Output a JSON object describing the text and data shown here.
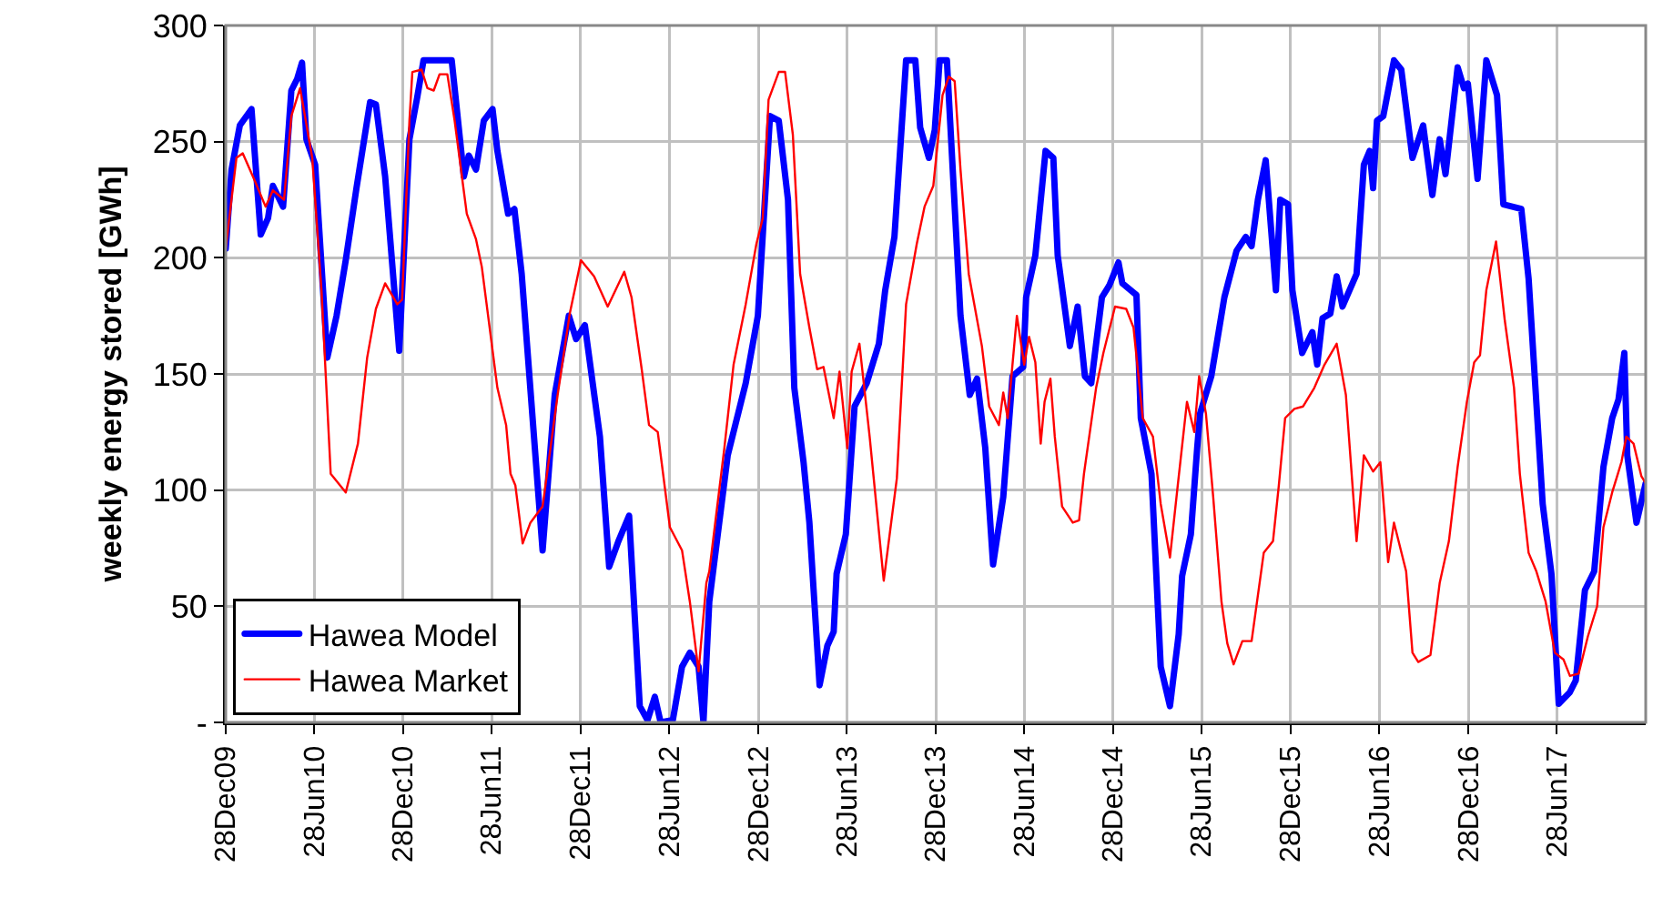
{
  "chart_data": {
    "type": "line",
    "ylabel": "weekly energy stored [GWh]",
    "xlim": [
      "2009-12-28",
      "2017-12-28"
    ],
    "xticks": [
      {
        "value": "2009-12-28",
        "label": "28Dec09"
      },
      {
        "value": "2010-06-28",
        "label": "28Jun10"
      },
      {
        "value": "2010-12-28",
        "label": "28Dec10"
      },
      {
        "value": "2011-06-28",
        "label": "28Jun11"
      },
      {
        "value": "2011-12-28",
        "label": "28Dec11"
      },
      {
        "value": "2012-06-28",
        "label": "28Jun12"
      },
      {
        "value": "2012-12-28",
        "label": "28Dec12"
      },
      {
        "value": "2013-06-28",
        "label": "28Jun13"
      },
      {
        "value": "2013-12-28",
        "label": "28Dec13"
      },
      {
        "value": "2014-06-28",
        "label": "28Jun14"
      },
      {
        "value": "2014-12-28",
        "label": "28Dec14"
      },
      {
        "value": "2015-06-28",
        "label": "28Jun15"
      },
      {
        "value": "2015-12-28",
        "label": "28Dec15"
      },
      {
        "value": "2016-06-28",
        "label": "28Jun16"
      },
      {
        "value": "2016-12-28",
        "label": "28Dec16"
      },
      {
        "value": "2017-06-28",
        "label": "28Jun17"
      }
    ],
    "ylim": [
      0,
      300
    ],
    "yticks": [
      {
        "value": 0,
        "label": "-"
      },
      50,
      100,
      150,
      200,
      250,
      300
    ],
    "grid": true,
    "legend": "bottom left",
    "marker": "none",
    "line_style": "solid",
    "series": [
      {
        "name": "Hawea Model",
        "color": "#0000ff",
        "x": [
          "2009-12-28",
          "2010-01-09",
          "2010-01-26",
          "2010-02-19",
          "2010-03-10",
          "2010-03-25",
          "2010-04-04",
          "2010-04-25",
          "2010-05-12",
          "2010-05-24",
          "2010-06-03",
          "2010-06-12",
          "2010-06-30",
          "2010-07-25",
          "2010-08-13",
          "2010-09-01",
          "2010-09-23",
          "2010-10-21",
          "2010-11-02",
          "2010-11-21",
          "2010-12-20",
          "2011-01-10",
          "2011-01-26",
          "2011-02-08",
          "2011-04-07",
          "2011-05-02",
          "2011-05-12",
          "2011-05-27",
          "2011-06-12",
          "2011-06-30",
          "2011-07-10",
          "2011-08-01",
          "2011-08-14",
          "2011-08-29",
          "2011-10-11",
          "2011-11-05",
          "2011-12-04",
          "2011-12-19",
          "2012-01-06",
          "2012-02-06",
          "2012-02-25",
          "2012-03-15",
          "2012-04-06",
          "2012-04-28",
          "2012-05-14",
          "2012-05-29",
          "2012-06-10",
          "2012-07-05",
          "2012-07-24",
          "2012-08-09",
          "2012-08-27",
          "2012-09-06",
          "2012-09-18",
          "2012-10-26",
          "2012-12-02",
          "2012-12-27",
          "2013-01-21",
          "2013-02-08",
          "2013-02-27",
          "2013-03-12",
          "2013-03-31",
          "2013-04-12",
          "2013-05-03",
          "2013-05-19",
          "2013-06-01",
          "2013-06-07",
          "2013-06-26",
          "2013-07-14",
          "2013-08-08",
          "2013-09-02",
          "2013-09-15",
          "2013-10-04",
          "2013-10-28",
          "2013-11-16",
          "2013-11-26",
          "2013-12-14",
          "2013-12-26",
          "2014-01-05",
          "2014-01-20",
          "2014-02-17",
          "2014-03-08",
          "2014-03-23",
          "2014-04-09",
          "2014-04-25",
          "2014-05-16",
          "2014-06-04",
          "2014-06-26",
          "2014-07-02",
          "2014-07-21",
          "2014-08-11",
          "2014-08-27",
          "2014-09-05",
          "2014-09-30",
          "2014-10-16",
          "2014-10-31",
          "2014-11-13",
          "2014-12-05",
          "2014-12-20",
          "2015-01-08",
          "2015-01-16",
          "2015-02-14",
          "2015-02-23",
          "2015-03-17",
          "2015-04-05",
          "2015-04-24",
          "2015-05-12",
          "2015-05-19",
          "2015-06-06",
          "2015-06-19",
          "2015-06-25",
          "2015-07-18",
          "2015-08-14",
          "2015-09-08",
          "2015-09-27",
          "2015-10-09",
          "2015-10-22",
          "2015-11-07",
          "2015-11-28",
          "2015-12-07",
          "2015-12-23",
          "2016-01-01",
          "2016-01-21",
          "2016-02-11",
          "2016-02-21",
          "2016-03-03",
          "2016-03-19",
          "2016-04-01",
          "2016-04-13",
          "2016-05-12",
          "2016-05-27",
          "2016-06-08",
          "2016-06-15",
          "2016-06-23",
          "2016-07-06",
          "2016-07-28",
          "2016-08-12",
          "2016-09-04",
          "2016-09-26",
          "2016-10-15",
          "2016-10-30",
          "2016-11-11",
          "2016-12-06",
          "2016-12-19",
          "2016-12-27",
          "2017-01-16",
          "2017-02-03",
          "2017-02-25",
          "2017-03-10",
          "2017-04-16",
          "2017-05-01",
          "2017-05-30",
          "2017-06-17",
          "2017-07-02",
          "2017-07-25",
          "2017-08-06",
          "2017-08-25",
          "2017-09-13",
          "2017-10-02",
          "2017-10-20",
          "2017-11-02",
          "2017-11-14",
          "2017-11-20",
          "2017-12-09",
          "2017-12-28"
        ],
        "values": [
          204,
          238,
          257,
          264,
          210,
          217,
          231,
          222,
          272,
          277,
          284,
          251,
          240,
          157,
          175,
          199,
          230,
          267,
          266,
          235,
          160,
          251,
          269,
          285,
          285,
          235,
          244,
          238,
          259,
          264,
          246,
          219,
          221,
          193,
          74,
          141,
          175,
          165,
          171,
          123,
          67,
          78,
          89,
          7,
          1,
          11,
          0,
          1,
          24,
          30,
          24,
          0,
          52,
          115,
          146,
          175,
          261,
          259,
          225,
          144,
          112,
          86,
          16,
          33,
          39,
          64,
          81,
          136,
          146,
          163,
          186,
          209,
          285,
          285,
          256,
          243,
          255,
          285,
          285,
          175,
          141,
          148,
          118,
          68,
          97,
          149,
          153,
          183,
          201,
          246,
          243,
          201,
          162,
          179,
          149,
          146,
          183,
          188,
          198,
          189,
          184,
          131,
          107,
          24,
          7,
          38,
          63,
          81,
          118,
          133,
          149,
          183,
          203,
          209,
          205,
          225,
          242,
          186,
          225,
          223,
          186,
          159,
          168,
          154,
          174,
          176,
          192,
          179,
          193,
          240,
          246,
          230,
          259,
          261,
          285,
          281,
          243,
          257,
          227,
          251,
          236,
          282,
          273,
          275,
          234,
          285,
          270,
          223,
          221,
          191,
          94,
          64,
          8,
          13,
          18,
          57,
          65,
          110,
          131,
          139,
          159,
          115,
          86,
          103
        ]
      },
      {
        "name": "Hawea Market",
        "color": "#ff0000",
        "x": [
          "2009-12-28",
          "2010-01-19",
          "2010-02-01",
          "2010-02-26",
          "2010-03-20",
          "2010-04-04",
          "2010-04-27",
          "2010-05-12",
          "2010-05-30",
          "2010-06-24",
          "2010-07-13",
          "2010-08-01",
          "2010-09-01",
          "2010-09-26",
          "2010-10-15",
          "2010-11-02",
          "2010-11-21",
          "2010-12-16",
          "2010-12-26",
          "2011-01-10",
          "2011-01-16",
          "2011-02-04",
          "2011-02-16",
          "2011-03-01",
          "2011-03-13",
          "2011-03-29",
          "2011-04-13",
          "2011-05-08",
          "2011-05-27",
          "2011-06-08",
          "2011-07-10",
          "2011-07-28",
          "2011-08-06",
          "2011-08-16",
          "2011-08-31",
          "2011-09-16",
          "2011-10-11",
          "2011-11-11",
          "2011-12-06",
          "2011-12-29",
          "2012-01-25",
          "2012-02-22",
          "2012-03-27",
          "2012-04-11",
          "2012-05-02",
          "2012-05-17",
          "2012-06-04",
          "2012-06-29",
          "2012-07-24",
          "2012-08-09",
          "2012-08-27",
          "2012-09-12",
          "2012-09-18",
          "2012-10-19",
          "2012-11-07",
          "2012-12-02",
          "2012-12-24",
          "2013-01-06",
          "2013-01-18",
          "2013-02-08",
          "2013-02-21",
          "2013-03-09",
          "2013-03-24",
          "2013-04-12",
          "2013-04-28",
          "2013-05-11",
          "2013-06-01",
          "2013-06-13",
          "2013-06-29",
          "2013-07-08",
          "2013-07-24",
          "2013-08-14",
          "2013-09-12",
          "2013-10-09",
          "2013-10-28",
          "2013-11-19",
          "2013-12-05",
          "2013-12-23",
          "2014-01-11",
          "2014-01-24",
          "2014-02-05",
          "2014-02-17",
          "2014-03-06",
          "2014-04-02",
          "2014-04-17",
          "2014-05-07",
          "2014-05-16",
          "2014-05-25",
          "2014-06-13",
          "2014-06-28",
          "2014-07-08",
          "2014-07-21",
          "2014-08-01",
          "2014-08-09",
          "2014-08-21",
          "2014-08-30",
          "2014-09-14",
          "2014-10-06",
          "2014-10-19",
          "2014-10-29",
          "2014-11-23",
          "2014-12-08",
          "2015-01-01",
          "2015-01-24",
          "2015-02-08",
          "2015-02-27",
          "2015-03-20",
          "2015-04-05",
          "2015-04-24",
          "2015-05-10",
          "2015-05-29",
          "2015-06-13",
          "2015-06-23",
          "2015-07-07",
          "2015-07-22",
          "2015-08-08",
          "2015-08-20",
          "2015-09-02",
          "2015-09-20",
          "2015-10-09",
          "2015-11-03",
          "2015-11-22",
          "2015-12-04",
          "2015-12-17",
          "2016-01-05",
          "2016-01-23",
          "2016-02-15",
          "2016-03-07",
          "2016-04-01",
          "2016-04-20",
          "2016-05-12",
          "2016-05-27",
          "2016-06-15",
          "2016-06-30",
          "2016-07-16",
          "2016-07-28",
          "2016-08-22",
          "2016-09-04",
          "2016-09-16",
          "2016-10-11",
          "2016-10-30",
          "2016-11-18",
          "2016-12-06",
          "2016-12-25",
          "2017-01-09",
          "2017-01-21",
          "2017-02-03",
          "2017-02-23",
          "2017-03-13",
          "2017-04-01",
          "2017-04-13",
          "2017-05-01",
          "2017-05-17",
          "2017-06-05",
          "2017-06-24",
          "2017-07-12",
          "2017-07-25",
          "2017-08-12",
          "2017-08-31",
          "2017-09-19",
          "2017-10-02",
          "2017-10-20",
          "2017-11-08",
          "2017-11-18",
          "2017-12-03",
          "2017-12-19",
          "2017-12-28"
        ],
        "values": [
          204,
          243,
          245,
          233,
          222,
          229,
          225,
          261,
          273,
          243,
          186,
          107,
          99,
          120,
          157,
          178,
          189,
          180,
          182,
          259,
          280,
          281,
          273,
          272,
          279,
          279,
          259,
          219,
          208,
          196,
          144,
          128,
          107,
          102,
          77,
          86,
          93,
          141,
          176,
          199,
          192,
          179,
          194,
          183,
          152,
          128,
          125,
          84,
          74,
          52,
          22,
          60,
          65,
          118,
          154,
          180,
          206,
          217,
          268,
          280,
          280,
          253,
          193,
          170,
          152,
          153,
          131,
          151,
          118,
          151,
          163,
          123,
          61,
          105,
          180,
          206,
          222,
          231,
          270,
          278,
          276,
          238,
          193,
          162,
          136,
          128,
          142,
          131,
          175,
          154,
          166,
          155,
          120,
          138,
          148,
          123,
          93,
          86,
          87,
          107,
          144,
          159,
          179,
          178,
          170,
          131,
          123,
          94,
          71,
          102,
          138,
          125,
          149,
          133,
          97,
          52,
          34,
          25,
          35,
          35,
          73,
          78,
          102,
          131,
          135,
          136,
          144,
          154,
          163,
          141,
          78,
          115,
          108,
          112,
          69,
          86,
          65,
          30,
          26,
          29,
          60,
          78,
          110,
          138,
          155,
          158,
          186,
          207,
          173,
          144,
          107,
          73,
          65,
          52,
          30,
          27,
          20,
          21,
          37,
          50,
          84,
          99,
          112,
          123,
          120,
          106,
          103
        ]
      }
    ]
  }
}
